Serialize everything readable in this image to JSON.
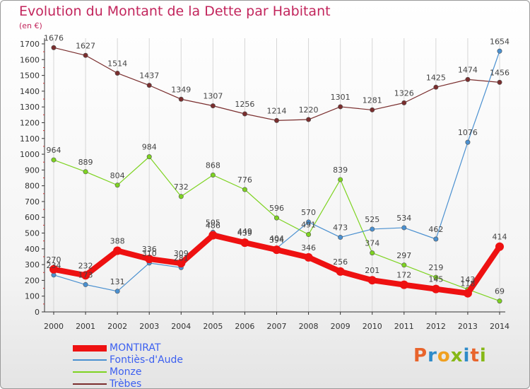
{
  "chart_data": {
    "type": "line",
    "title": "Evolution du Montant de la Dette par Habitant",
    "unit_label": "(en €)",
    "x": [
      "2000",
      "2001",
      "2002",
      "2003",
      "2004",
      "2005",
      "2006",
      "2007",
      "2008",
      "2009",
      "2010",
      "2011",
      "2012",
      "2013",
      "2014"
    ],
    "ylim": [
      0,
      1700
    ],
    "yticks": [
      0,
      100,
      200,
      300,
      400,
      500,
      600,
      700,
      800,
      900,
      1000,
      1100,
      1200,
      1300,
      1400,
      1500,
      1600,
      1700
    ],
    "grid": "x",
    "legend_position": "bottom-left",
    "series": [
      {
        "name": "MONTIRAT",
        "color": "#ee1111",
        "values": [
          270,
          232,
          388,
          336,
          309,
          486,
          439,
          394,
          346,
          256,
          201,
          172,
          145,
          118,
          414
        ]
      },
      {
        "name": "Fontiès-d'Aude",
        "color": "#4a90d0",
        "values": [
          234,
          173,
          131,
          310,
          281,
          505,
          449,
          404,
          570,
          473,
          525,
          534,
          462,
          1076,
          1654
        ]
      },
      {
        "name": "Monze",
        "color": "#7ed321",
        "values": [
          964,
          889,
          804,
          984,
          732,
          868,
          776,
          596,
          491,
          839,
          374,
          297,
          219,
          143,
          69
        ]
      },
      {
        "name": "Trèbes",
        "color": "#7a2e2e",
        "values": [
          1676,
          1627,
          1514,
          1437,
          1349,
          1307,
          1256,
          1214,
          1220,
          1301,
          1281,
          1326,
          1425,
          1474,
          1456
        ]
      }
    ]
  },
  "brand": {
    "letters": [
      "P",
      "r",
      "o",
      "x",
      "i",
      "t",
      "i"
    ],
    "colors": [
      "#e8642c",
      "#2e8bc9",
      "#f0a020",
      "#86b817",
      "#2e8bc9",
      "#e8642c",
      "#86b817"
    ]
  }
}
